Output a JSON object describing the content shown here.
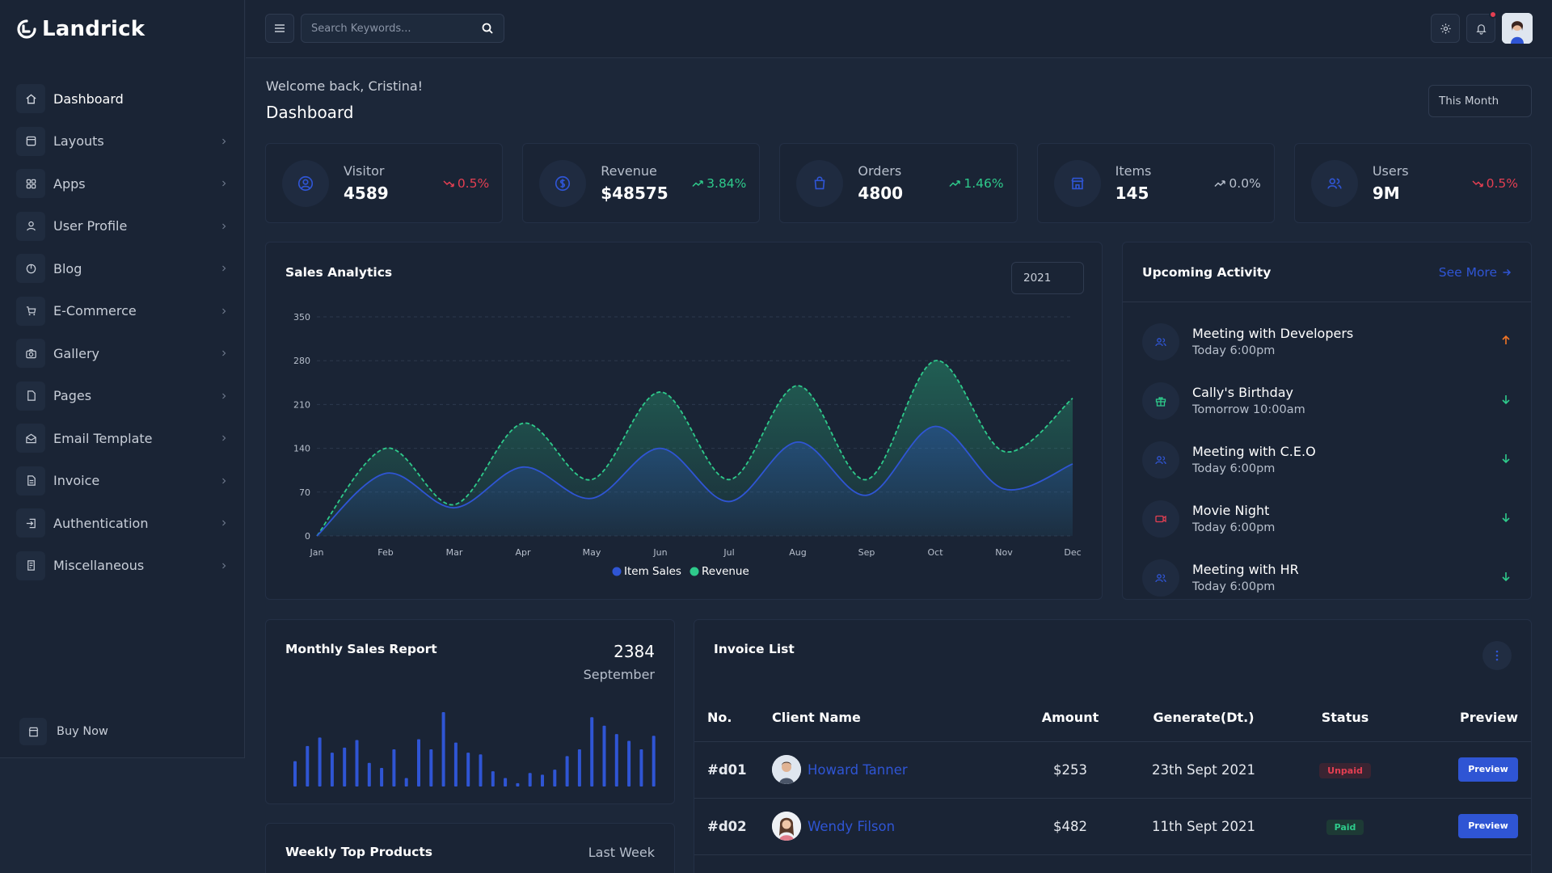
{
  "brand": {
    "name": "Landrick"
  },
  "sidebar": {
    "items": [
      {
        "label": "Dashboard",
        "icon": "home-icon"
      },
      {
        "label": "Layouts",
        "icon": "layout-icon"
      },
      {
        "label": "Apps",
        "icon": "apps-icon"
      },
      {
        "label": "User Profile",
        "icon": "user-icon"
      },
      {
        "label": "Blog",
        "icon": "blog-icon"
      },
      {
        "label": "E-Commerce",
        "icon": "cart-icon"
      },
      {
        "label": "Gallery",
        "icon": "camera-icon"
      },
      {
        "label": "Pages",
        "icon": "file-icon"
      },
      {
        "label": "Email Template",
        "icon": "mail-icon"
      },
      {
        "label": "Invoice",
        "icon": "invoice-icon"
      },
      {
        "label": "Authentication",
        "icon": "login-icon"
      },
      {
        "label": "Miscellaneous",
        "icon": "misc-icon"
      }
    ],
    "buy_now": "Buy Now"
  },
  "topbar": {
    "search_placeholder": "Search Keywords..."
  },
  "header": {
    "welcome": "Welcome back, Cristina!",
    "title": "Dashboard",
    "period": "This Month"
  },
  "stats": [
    {
      "label": "Visitor",
      "value": "4589",
      "change": "0.5%",
      "trend": "down",
      "icon": "user-circle-icon"
    },
    {
      "label": "Revenue",
      "value": "$48575",
      "change": "3.84%",
      "trend": "up",
      "icon": "dollar-icon"
    },
    {
      "label": "Orders",
      "value": "4800",
      "change": "1.46%",
      "trend": "up",
      "icon": "shopping-bag-icon"
    },
    {
      "label": "Items",
      "value": "145",
      "change": "0.0%",
      "trend": "flat",
      "icon": "store-icon"
    },
    {
      "label": "Users",
      "value": "9M",
      "change": "0.5%",
      "trend": "down",
      "icon": "users-icon"
    }
  ],
  "sales_analytics": {
    "title": "Sales Analytics",
    "year": "2021"
  },
  "chart_data": {
    "type": "area",
    "title": "Sales Analytics",
    "categories": [
      "Jan",
      "Feb",
      "Mar",
      "Apr",
      "May",
      "Jun",
      "Jul",
      "Aug",
      "Sep",
      "Oct",
      "Nov",
      "Dec"
    ],
    "ylim": [
      0,
      350
    ],
    "yticks": [
      0,
      70,
      140,
      210,
      280,
      350
    ],
    "grid": true,
    "legend": "bottom-center",
    "series": [
      {
        "name": "Item Sales",
        "color": "#2f55d4",
        "values": [
          0,
          100,
          45,
          110,
          60,
          140,
          55,
          150,
          65,
          175,
          75,
          115
        ]
      },
      {
        "name": "Revenue",
        "color": "#2eca8b",
        "values": [
          0,
          140,
          50,
          180,
          90,
          230,
          90,
          240,
          90,
          280,
          135,
          220
        ]
      }
    ]
  },
  "activity": {
    "title": "Upcoming Activity",
    "see_more": "See More",
    "items": [
      {
        "title": "Meeting with Developers",
        "time": "Today 6:00pm",
        "icon": "users-icon",
        "icon_color": "#2f55d4",
        "arrow": "up",
        "arrow_color": "#f17425"
      },
      {
        "title": "Cally's Birthday",
        "time": "Tomorrow 10:00am",
        "icon": "gift-icon",
        "icon_color": "#2eca8b",
        "arrow": "down",
        "arrow_color": "#2eca8b"
      },
      {
        "title": "Meeting with C.E.O",
        "time": "Today 6:00pm",
        "icon": "users-icon",
        "icon_color": "#2f55d4",
        "arrow": "down",
        "arrow_color": "#2eca8b"
      },
      {
        "title": "Movie Night",
        "time": "Today 6:00pm",
        "icon": "video-icon",
        "icon_color": "#e43f52",
        "arrow": "down",
        "arrow_color": "#2eca8b"
      },
      {
        "title": "Meeting with HR",
        "time": "Today 6:00pm",
        "icon": "users-icon",
        "icon_color": "#2f55d4",
        "arrow": "down",
        "arrow_color": "#2eca8b"
      }
    ]
  },
  "monthly_sales": {
    "title": "Monthly Sales Report",
    "value": "2384",
    "month": "September",
    "bars": [
      30,
      48,
      58,
      40,
      46,
      55,
      28,
      22,
      44,
      10,
      56,
      44,
      88,
      52,
      40,
      38,
      18,
      10,
      4,
      16,
      14,
      20,
      36,
      44,
      82,
      72,
      62,
      54,
      44,
      60,
      64
    ]
  },
  "weekly_top": {
    "title": "Weekly Top Products",
    "period": "Last Week"
  },
  "invoice": {
    "title": "Invoice List",
    "columns": {
      "no": "No.",
      "client": "Client Name",
      "amount": "Amount",
      "generated": "Generate(Dt.)",
      "status": "Status",
      "preview": "Preview"
    },
    "rows": [
      {
        "no": "#d01",
        "client": "Howard Tanner",
        "amount": "$253",
        "generated": "23th Sept 2021",
        "status": "Unpaid",
        "status_type": "unpaid",
        "preview": "Preview"
      },
      {
        "no": "#d02",
        "client": "Wendy Filson",
        "amount": "$482",
        "generated": "11th Sept 2021",
        "status": "Paid",
        "status_type": "paid",
        "preview": "Preview"
      }
    ]
  },
  "colors": {
    "primary": "#2f55d4",
    "success": "#2eca8b",
    "danger": "#e43f52",
    "warning": "#f17425"
  }
}
